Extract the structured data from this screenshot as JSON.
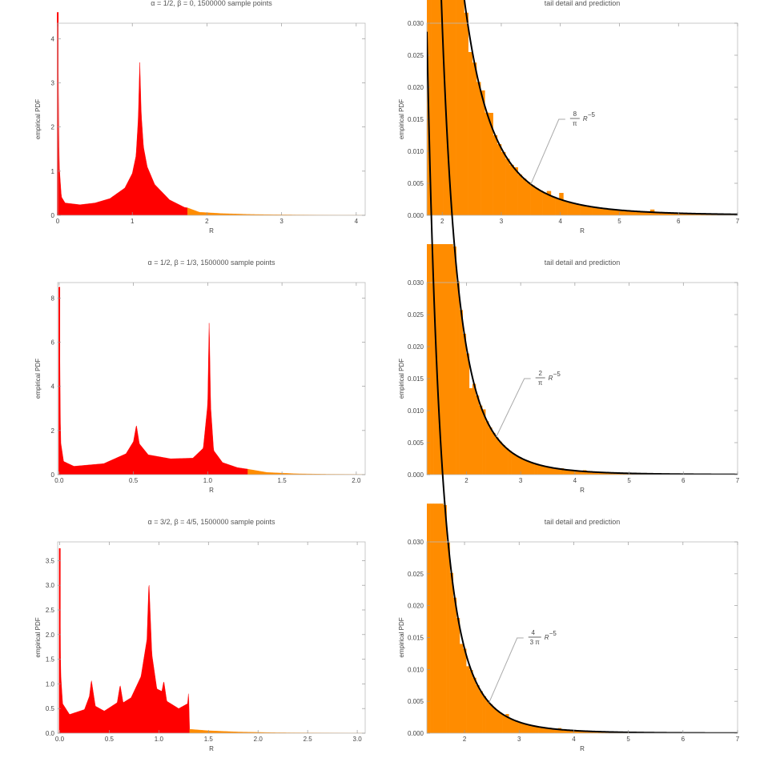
{
  "chart_data": [
    {
      "type": "bar",
      "panel": "histogram",
      "title": "α = 1/2,   β = 0,  1500000 sample points",
      "xlabel": "R",
      "ylabel": "empirical PDF",
      "xlim": [
        0,
        4.12
      ],
      "ylim": [
        0,
        4.35
      ],
      "xticks": [
        0,
        1,
        2,
        3,
        4
      ],
      "yticks": [
        0,
        1,
        2,
        3,
        4
      ],
      "tick_decimals": 0,
      "split_x": 1.74,
      "colors": {
        "body": "#ff0000",
        "tail": "#ff8c00"
      },
      "x": [
        0,
        0.02,
        0.05,
        0.1,
        0.3,
        0.5,
        0.7,
        0.9,
        1.0,
        1.05,
        1.08,
        1.1,
        1.12,
        1.15,
        1.2,
        1.3,
        1.5,
        1.7,
        1.74,
        1.9,
        2.2,
        2.6,
        3.0,
        3.5,
        4.12
      ],
      "y": [
        4.6,
        1.15,
        0.42,
        0.28,
        0.24,
        0.28,
        0.38,
        0.62,
        0.95,
        1.35,
        2.2,
        3.5,
        2.3,
        1.55,
        1.1,
        0.7,
        0.35,
        0.18,
        0.17,
        0.07,
        0.04,
        0.02,
        0.012,
        0.006,
        0.003
      ]
    },
    {
      "type": "bar",
      "panel": "tail",
      "title": "tail detail and prediction",
      "xlabel": "R",
      "ylabel": "empirical PDF",
      "xlim": [
        1.74,
        7
      ],
      "ylim": [
        0,
        0.03
      ],
      "xticks": [
        2,
        3,
        4,
        5,
        6,
        7
      ],
      "yticks": [
        0.0,
        0.005,
        0.01,
        0.015,
        0.02,
        0.025,
        0.03
      ],
      "tick_decimals": 3,
      "bar_color": "#ff8c00",
      "curve_color": "#000000",
      "prediction": {
        "coefficient": 2.546,
        "power": -5,
        "label_num": "8",
        "label_den": "π",
        "label_tail": "R",
        "label_exp": "−5",
        "anchor_x": 3.5
      },
      "bin_width": 0.07,
      "spikes": [
        [
          2.48,
          0.0255
        ],
        [
          2.65,
          0.0195
        ],
        [
          2.79,
          0.016
        ],
        [
          3.27,
          0.0075
        ],
        [
          3.78,
          0.0038
        ],
        [
          3.98,
          0.0035
        ],
        [
          5.55,
          0.0009
        ]
      ]
    },
    {
      "type": "bar",
      "panel": "histogram",
      "title": "α = 1/2,   β = 1/3,  1500000 sample points",
      "xlabel": "R",
      "ylabel": "empirical PDF",
      "xlim": [
        -0.01,
        2.06
      ],
      "ylim": [
        0,
        8.7
      ],
      "xticks": [
        0.0,
        0.5,
        1.0,
        1.5,
        2.0
      ],
      "yticks": [
        0,
        2,
        4,
        6,
        8
      ],
      "tick_decimals": 1,
      "ytick_decimals": 0,
      "split_x": 1.27,
      "colors": {
        "body": "#ff0000",
        "tail": "#ff8c00"
      },
      "x": [
        0,
        0.01,
        0.03,
        0.1,
        0.3,
        0.45,
        0.5,
        0.52,
        0.54,
        0.6,
        0.75,
        0.9,
        0.97,
        1.0,
        1.01,
        1.02,
        1.04,
        1.1,
        1.2,
        1.27,
        1.4,
        1.6,
        1.8,
        2.06
      ],
      "y": [
        8.5,
        1.5,
        0.6,
        0.38,
        0.5,
        0.95,
        1.5,
        2.25,
        1.4,
        0.9,
        0.72,
        0.75,
        1.2,
        3.2,
        7.1,
        3.1,
        1.1,
        0.55,
        0.32,
        0.25,
        0.1,
        0.04,
        0.02,
        0.01
      ]
    },
    {
      "type": "bar",
      "panel": "tail",
      "title": "tail detail and prediction",
      "xlabel": "R",
      "ylabel": "empirical PDF",
      "xlim": [
        1.27,
        7
      ],
      "ylim": [
        0,
        0.03
      ],
      "xticks": [
        2,
        3,
        4,
        5,
        6,
        7
      ],
      "yticks": [
        0.0,
        0.005,
        0.01,
        0.015,
        0.02,
        0.025,
        0.03
      ],
      "tick_decimals": 3,
      "bar_color": "#ff8c00",
      "curve_color": "#000000",
      "prediction": {
        "coefficient": 0.6366,
        "power": -5,
        "label_num": "2",
        "label_den": "π",
        "label_tail": "R",
        "label_exp": "−5",
        "anchor_x": 2.55
      },
      "bin_width": 0.06,
      "spikes": [
        [
          2.09,
          0.0135
        ],
        [
          2.32,
          0.0102
        ],
        [
          3.75,
          0.001
        ],
        [
          4.2,
          0.0007
        ]
      ]
    },
    {
      "type": "bar",
      "panel": "histogram",
      "title": "α = 3/2,   β = 4/5,  1500000 sample points",
      "xlabel": "R",
      "ylabel": "empirical PDF",
      "xlim": [
        -0.02,
        3.08
      ],
      "ylim": [
        0,
        3.88
      ],
      "xticks": [
        0.0,
        0.5,
        1.0,
        1.5,
        2.0,
        2.5,
        3.0
      ],
      "yticks": [
        0.0,
        0.5,
        1.0,
        1.5,
        2.0,
        2.5,
        3.0,
        3.5
      ],
      "tick_decimals": 1,
      "split_x": 1.31,
      "colors": {
        "body": "#ff0000",
        "tail": "#ff8c00"
      },
      "x": [
        0,
        0.01,
        0.03,
        0.1,
        0.25,
        0.3,
        0.32,
        0.36,
        0.45,
        0.58,
        0.61,
        0.64,
        0.72,
        0.82,
        0.88,
        0.9,
        0.93,
        0.98,
        1.03,
        1.05,
        1.08,
        1.2,
        1.29,
        1.3,
        1.31,
        1.5,
        1.8,
        2.2,
        2.6,
        3.08
      ],
      "y": [
        3.75,
        1.25,
        0.6,
        0.38,
        0.48,
        0.75,
        1.08,
        0.55,
        0.45,
        0.62,
        0.98,
        0.62,
        0.72,
        1.15,
        1.9,
        3.1,
        1.6,
        0.9,
        0.85,
        1.06,
        0.65,
        0.5,
        0.6,
        0.85,
        0.08,
        0.05,
        0.025,
        0.01,
        0.006,
        0.003
      ]
    },
    {
      "type": "bar",
      "panel": "tail",
      "title": "tail detail and prediction",
      "xlabel": "R",
      "ylabel": "empirical PDF",
      "xlim": [
        1.31,
        7
      ],
      "ylim": [
        0,
        0.03
      ],
      "xticks": [
        2,
        3,
        4,
        5,
        6,
        7
      ],
      "yticks": [
        0.0,
        0.005,
        0.01,
        0.015,
        0.02,
        0.025,
        0.03
      ],
      "tick_decimals": 3,
      "bar_color": "#ff8c00",
      "curve_color": "#000000",
      "prediction": {
        "coefficient": 0.4244,
        "power": -5,
        "label_num": "4",
        "label_den": "3 π",
        "label_tail": "R",
        "label_exp": "−5",
        "anchor_x": 2.45
      },
      "bin_width": 0.06,
      "spikes": [
        [
          1.93,
          0.014
        ],
        [
          2.07,
          0.0105
        ],
        [
          2.2,
          0.0087
        ],
        [
          2.77,
          0.003
        ],
        [
          3.75,
          0.0008
        ]
      ]
    }
  ]
}
